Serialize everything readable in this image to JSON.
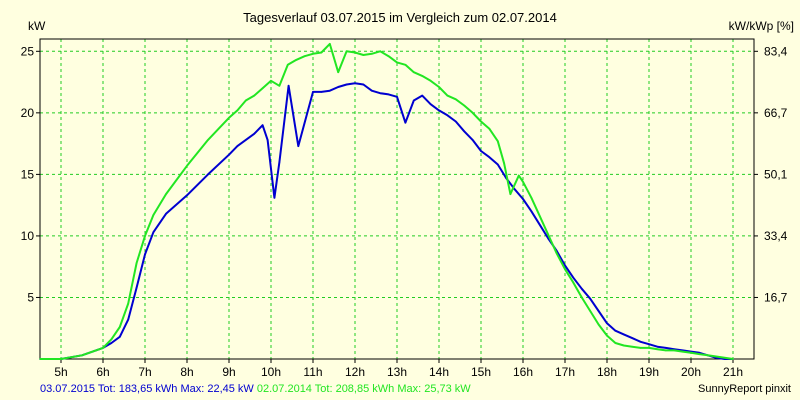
{
  "chart_data": {
    "type": "line",
    "title": "Tagesverlauf 03.07.2015 im Vergleich zum 02.07.2014",
    "ylabel_left": "kW",
    "ylabel_right": "kW/kWp [%]",
    "xlim": [
      4.5,
      21.5
    ],
    "ylim": [
      0,
      26
    ],
    "x_ticks": [
      5,
      6,
      7,
      8,
      9,
      10,
      11,
      12,
      13,
      14,
      15,
      16,
      17,
      18,
      19,
      20,
      21
    ],
    "x_tick_labels": [
      "5h",
      "6h",
      "7h",
      "8h",
      "9h",
      "10h",
      "11h",
      "12h",
      "13h",
      "14h",
      "15h",
      "16h",
      "17h",
      "18h",
      "19h",
      "20h",
      "21h"
    ],
    "y_ticks": [
      5,
      10,
      15,
      20,
      25
    ],
    "y_tick_labels": [
      "5",
      "10",
      "15",
      "20",
      "25"
    ],
    "y2_ticks": [
      5,
      10,
      15,
      20,
      25
    ],
    "y2_tick_labels": [
      "16,7",
      "33,4",
      "50,1",
      "66,7",
      "83,4"
    ],
    "grid": true,
    "background_color": "#ffffe0",
    "plot_frame_color": "#000000",
    "grid_color": "#22cc22",
    "series": [
      {
        "name": "03.07.2015",
        "color": "#0000d0",
        "x": [
          4.5,
          5.0,
          5.5,
          6.0,
          6.2,
          6.4,
          6.6,
          6.8,
          7.0,
          7.2,
          7.5,
          8.0,
          8.5,
          9.0,
          9.2,
          9.4,
          9.6,
          9.8,
          9.92,
          10.08,
          10.2,
          10.42,
          10.65,
          11.0,
          11.2,
          11.4,
          11.6,
          11.8,
          12.0,
          12.2,
          12.4,
          12.6,
          12.8,
          13.0,
          13.2,
          13.4,
          13.6,
          13.8,
          14.0,
          14.2,
          14.4,
          14.6,
          14.8,
          15.0,
          15.2,
          15.4,
          15.6,
          15.8,
          16.0,
          16.2,
          16.4,
          16.6,
          16.8,
          17.0,
          17.2,
          17.4,
          17.6,
          17.8,
          18.0,
          18.2,
          18.4,
          18.6,
          18.8,
          19.0,
          19.2,
          19.4,
          19.6,
          19.8,
          20.0,
          20.2,
          20.4,
          20.6,
          20.8,
          21.0
        ],
        "y": [
          0.0,
          0.0,
          0.3,
          0.9,
          1.3,
          1.8,
          3.2,
          5.8,
          8.5,
          10.3,
          11.8,
          13.3,
          15.0,
          16.6,
          17.3,
          17.8,
          18.3,
          19.0,
          17.8,
          13.1,
          16.0,
          22.2,
          17.3,
          21.7,
          21.7,
          21.8,
          22.1,
          22.3,
          22.4,
          22.3,
          21.8,
          21.6,
          21.5,
          21.3,
          19.2,
          21.0,
          21.4,
          20.7,
          20.2,
          19.8,
          19.3,
          18.5,
          17.8,
          16.9,
          16.4,
          15.8,
          14.7,
          13.8,
          13.0,
          12.0,
          10.9,
          9.8,
          8.8,
          7.6,
          6.6,
          5.7,
          4.9,
          3.9,
          2.9,
          2.3,
          2.0,
          1.7,
          1.4,
          1.2,
          1.0,
          0.9,
          0.8,
          0.7,
          0.6,
          0.5,
          0.3,
          0.1,
          0.0,
          0.0
        ]
      },
      {
        "name": "02.07.2014",
        "color": "#22e622",
        "x": [
          4.5,
          5.0,
          5.5,
          6.0,
          6.2,
          6.4,
          6.6,
          6.8,
          7.0,
          7.2,
          7.5,
          8.0,
          8.5,
          9.0,
          9.2,
          9.4,
          9.6,
          9.8,
          10.0,
          10.2,
          10.4,
          10.6,
          10.8,
          11.0,
          11.2,
          11.4,
          11.6,
          11.8,
          12.0,
          12.2,
          12.4,
          12.6,
          12.8,
          13.0,
          13.2,
          13.4,
          13.6,
          13.8,
          14.0,
          14.2,
          14.4,
          14.6,
          14.8,
          15.0,
          15.2,
          15.4,
          15.55,
          15.7,
          15.9,
          16.0,
          16.2,
          16.4,
          16.6,
          16.8,
          17.0,
          17.2,
          17.4,
          17.6,
          17.8,
          18.0,
          18.2,
          18.4,
          18.6,
          18.8,
          19.0,
          19.2,
          19.4,
          19.6,
          19.8,
          20.0,
          20.2,
          20.4,
          20.6,
          20.8,
          21.0
        ],
        "y": [
          0.0,
          0.0,
          0.3,
          0.9,
          1.6,
          2.6,
          4.5,
          7.8,
          10.0,
          11.7,
          13.4,
          15.7,
          17.8,
          19.6,
          20.2,
          21.0,
          21.4,
          22.0,
          22.6,
          22.2,
          23.9,
          24.3,
          24.6,
          24.8,
          24.9,
          25.6,
          23.3,
          25.0,
          24.9,
          24.7,
          24.8,
          25.0,
          24.6,
          24.1,
          23.9,
          23.3,
          23.0,
          22.6,
          22.1,
          21.4,
          21.1,
          20.6,
          20.0,
          19.3,
          18.7,
          17.7,
          15.9,
          13.4,
          14.9,
          14.4,
          13.1,
          11.6,
          10.1,
          8.6,
          7.3,
          6.2,
          5.0,
          3.9,
          2.8,
          1.9,
          1.3,
          1.1,
          1.0,
          0.9,
          0.9,
          0.8,
          0.7,
          0.7,
          0.6,
          0.5,
          0.4,
          0.3,
          0.2,
          0.1,
          0.0
        ]
      }
    ],
    "summary": {
      "s1_label": "03.07.2015 Tot: 183,65 kWh Max: 22,45 kW",
      "s2_label": "02.07.2014 Tot: 208,85 kWh Max: 25,73 kW"
    },
    "credit": "SunnyReport pinxit"
  }
}
